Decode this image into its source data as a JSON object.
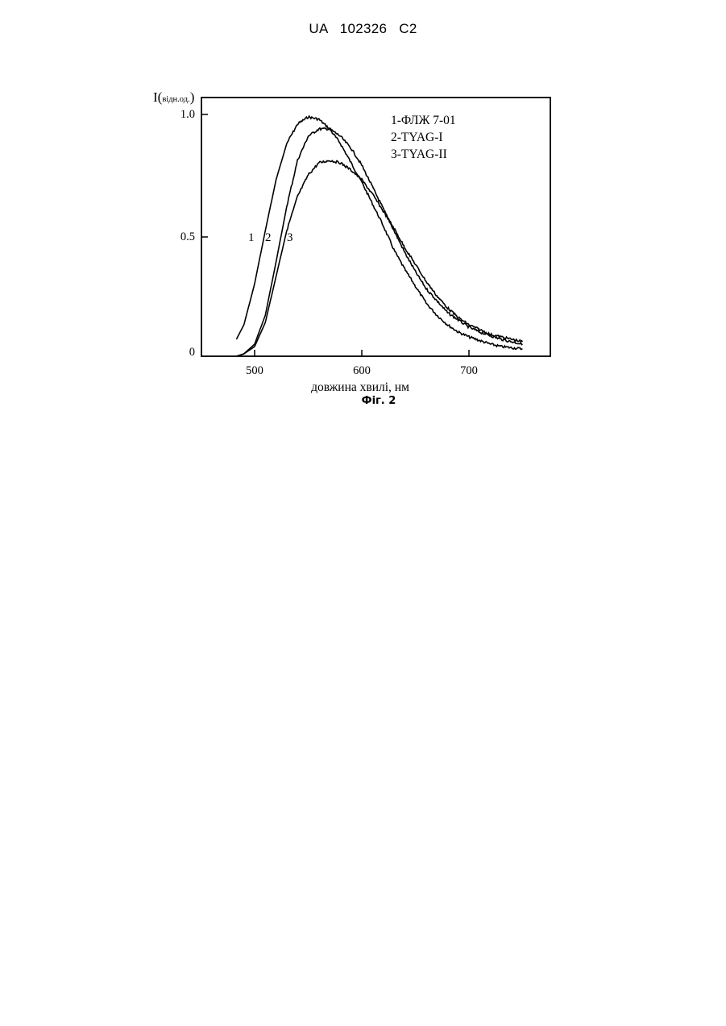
{
  "header": {
    "text": "UA 102326 C2"
  },
  "figure": {
    "caption": "Фіг. 2",
    "ylabel": {
      "main": "I(",
      "unit": "відн.од.",
      "close": ")"
    },
    "xlabel": "довжина хвилі, нм",
    "legend": [
      "1-ФЛЖ 7-01",
      "2-TYAG-I",
      "3-TYAG-II"
    ],
    "curve_numbers": [
      "1",
      "2",
      "3"
    ],
    "ytick_labels": [
      "1.0",
      "0.5",
      "0"
    ],
    "xtick_labels": [
      "500",
      "600",
      "700"
    ]
  },
  "chart_data": {
    "type": "line",
    "xlabel": "довжина хвилі, нм",
    "ylabel": "I(відн.од.)",
    "xlim": [
      450,
      776
    ],
    "ylim": [
      0,
      1.07
    ],
    "xticks": [
      500,
      600,
      700
    ],
    "yticks": [
      0,
      0.5,
      1.0
    ],
    "grid": false,
    "legend_position": "top-right",
    "series": [
      {
        "name": "1-ФЛЖ 7-01",
        "x": [
          483,
          490,
          500,
          510,
          520,
          530,
          540,
          550,
          560,
          570,
          580,
          590,
          600,
          610,
          620,
          630,
          640,
          650,
          660,
          670,
          680,
          690,
          700,
          710,
          720,
          730,
          740,
          750
        ],
        "y": [
          0.07,
          0.13,
          0.3,
          0.52,
          0.73,
          0.88,
          0.96,
          0.99,
          0.98,
          0.94,
          0.88,
          0.8,
          0.72,
          0.63,
          0.54,
          0.44,
          0.36,
          0.29,
          0.22,
          0.17,
          0.13,
          0.1,
          0.08,
          0.065,
          0.05,
          0.04,
          0.035,
          0.03
        ]
      },
      {
        "name": "2-TYAG-I",
        "x": [
          483,
          490,
          500,
          510,
          520,
          530,
          540,
          550,
          560,
          570,
          580,
          590,
          600,
          610,
          620,
          630,
          640,
          650,
          660,
          670,
          680,
          690,
          700,
          710,
          720,
          730,
          740,
          750
        ],
        "y": [
          0.0,
          0.01,
          0.05,
          0.17,
          0.39,
          0.62,
          0.81,
          0.91,
          0.94,
          0.94,
          0.91,
          0.86,
          0.79,
          0.7,
          0.61,
          0.52,
          0.43,
          0.35,
          0.28,
          0.23,
          0.18,
          0.15,
          0.12,
          0.1,
          0.085,
          0.07,
          0.06,
          0.05
        ]
      },
      {
        "name": "3-TYAG-II",
        "x": [
          483,
          490,
          500,
          510,
          520,
          530,
          540,
          550,
          560,
          570,
          580,
          590,
          600,
          610,
          620,
          630,
          640,
          650,
          660,
          670,
          680,
          690,
          700,
          710,
          720,
          730,
          740,
          750
        ],
        "y": [
          0.0,
          0.01,
          0.04,
          0.14,
          0.33,
          0.52,
          0.66,
          0.75,
          0.8,
          0.81,
          0.8,
          0.77,
          0.73,
          0.67,
          0.6,
          0.53,
          0.45,
          0.38,
          0.31,
          0.25,
          0.2,
          0.16,
          0.13,
          0.11,
          0.09,
          0.08,
          0.07,
          0.06
        ]
      }
    ]
  }
}
